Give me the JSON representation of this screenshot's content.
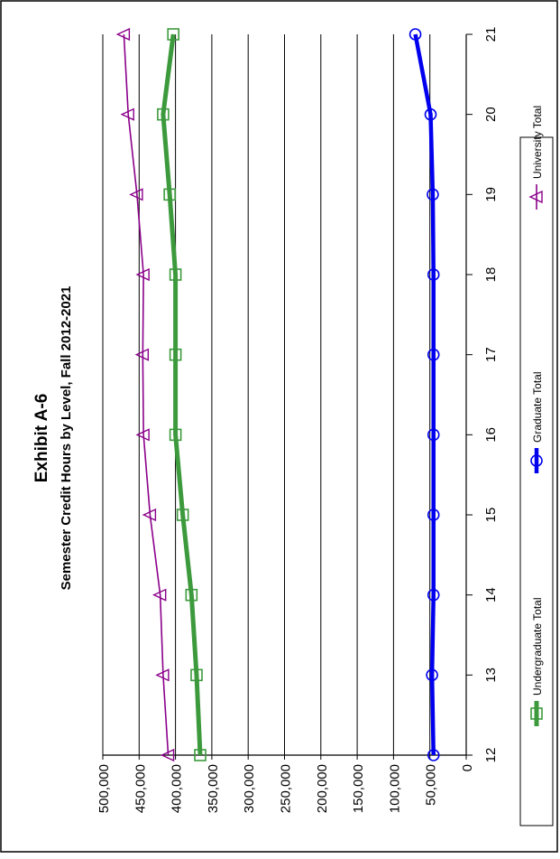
{
  "chart_data": {
    "type": "line",
    "title": "Exhibit A-6",
    "subtitle": "Semester Credit Hours by Level, Fall 2012-2021",
    "x": [
      12,
      13,
      14,
      15,
      16,
      17,
      18,
      19,
      20,
      21
    ],
    "x_tick_labels": [
      "12",
      "13",
      "14",
      "15",
      "16",
      "17",
      "18",
      "19",
      "20",
      "21"
    ],
    "y_tick_labels": [
      "0",
      "50,000",
      "100,000",
      "150,000",
      "200,000",
      "250,000",
      "300,000",
      "350,000",
      "400,000",
      "450,000",
      "500,000"
    ],
    "ylim": [
      0,
      500000
    ],
    "grid": true,
    "legend_position": "bottom",
    "series": [
      {
        "name": "Undergraduate Total",
        "color": "#3c9a3c",
        "marker": "square",
        "values": [
          366000,
          371000,
          378000,
          390000,
          400000,
          400000,
          400000,
          408000,
          417000,
          403000
        ]
      },
      {
        "name": "Graduate Total",
        "color": "#0000ee",
        "marker": "circle",
        "values": [
          45000,
          47000,
          45000,
          45000,
          45000,
          45000,
          45000,
          46000,
          49000,
          70000
        ]
      },
      {
        "name": "University Total",
        "color": "#8b008b",
        "marker": "triangle",
        "values": [
          410000,
          417000,
          421000,
          435000,
          444000,
          445000,
          444000,
          453000,
          465000,
          471000
        ]
      }
    ]
  }
}
